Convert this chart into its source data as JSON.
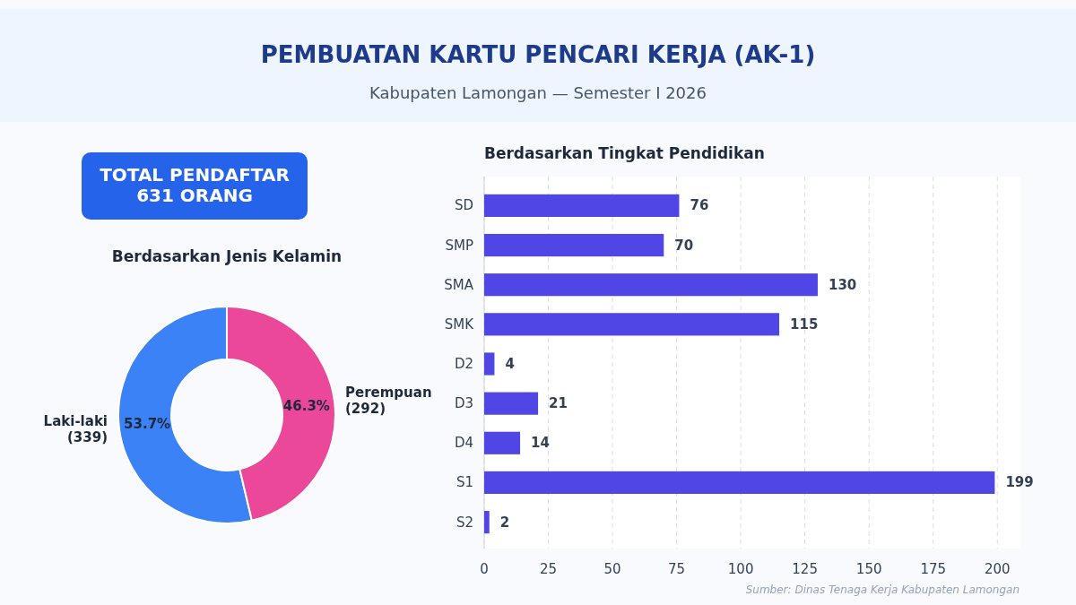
{
  "chart_data": [
    {
      "type": "other",
      "title": "PEMBUATAN KARTU PENCARI KERJA (AK-1)",
      "subtitle": "Kabupaten Lamongan — Semester I 2026",
      "annotations": [
        "TOTAL PENDAFTAR",
        "631 ORANG"
      ]
    },
    {
      "type": "donut",
      "title": "Berdasarkan Jenis Kelamin",
      "categories": [
        "Laki-laki (339)",
        "Perempuan (292)"
      ],
      "values": [
        53.7,
        46.3
      ],
      "value_labels": [
        "53.7%",
        "46.3%"
      ],
      "colors": [
        "#3b82f6",
        "#ec4899"
      ]
    },
    {
      "type": "bar",
      "orientation": "horizontal",
      "title": "Berdasarkan Tingkat Pendidikan",
      "categories": [
        "SD",
        "SMP",
        "SMA",
        "SMK",
        "D2",
        "D3",
        "D4",
        "S1",
        "S2"
      ],
      "values": [
        76,
        70,
        130,
        115,
        4,
        21,
        14,
        199,
        2
      ],
      "color": "#4f46e5",
      "xlim": [
        0,
        209
      ],
      "xticks": [
        0,
        25,
        50,
        75,
        100,
        125,
        150,
        175,
        200
      ],
      "grid": "x",
      "data_labels": true,
      "annotations": [
        "Sumber: Dinas Tenaga Kerja Kabupaten Lamongan"
      ]
    }
  ]
}
